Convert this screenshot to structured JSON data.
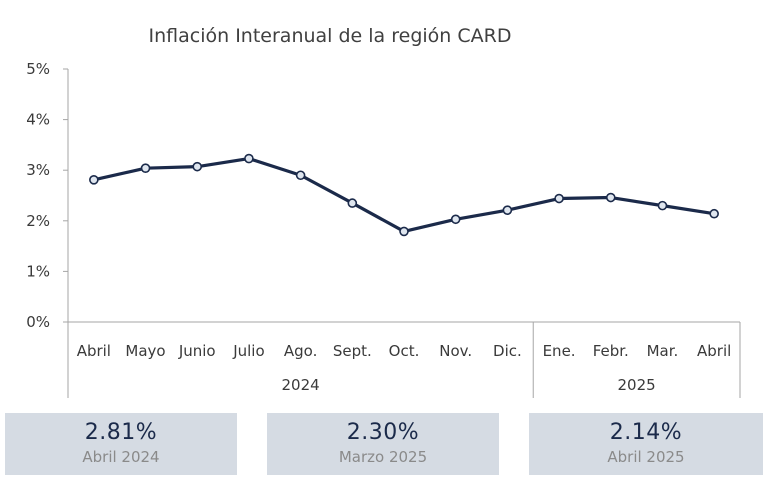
{
  "chart_data": {
    "type": "line",
    "title": "Inflación Interanual de la región CARD",
    "categories": [
      "Abril",
      "Mayo",
      "Junio",
      "Julio",
      "Ago.",
      "Sept.",
      "Oct.",
      "Nov.",
      "Dic.",
      "Ene.",
      "Febr.",
      "Mar.",
      "Abril"
    ],
    "groups": [
      {
        "label": "2024",
        "count": 9
      },
      {
        "label": "2025",
        "count": 4
      }
    ],
    "series": [
      {
        "values": [
          2.81,
          3.04,
          3.07,
          3.23,
          2.9,
          2.35,
          1.79,
          2.03,
          2.21,
          2.44,
          2.46,
          2.3,
          2.14
        ],
        "color": "#1b2a4a"
      }
    ],
    "yticks": [
      "0%",
      "1%",
      "2%",
      "3%",
      "4%",
      "5%"
    ],
    "ylim": [
      0,
      5
    ],
    "grid": false
  },
  "cards": [
    {
      "value": "2.81%",
      "label": "Abril 2024"
    },
    {
      "value": "2.30%",
      "label": "Marzo 2025"
    },
    {
      "value": "2.14%",
      "label": "Abril 2025"
    }
  ]
}
